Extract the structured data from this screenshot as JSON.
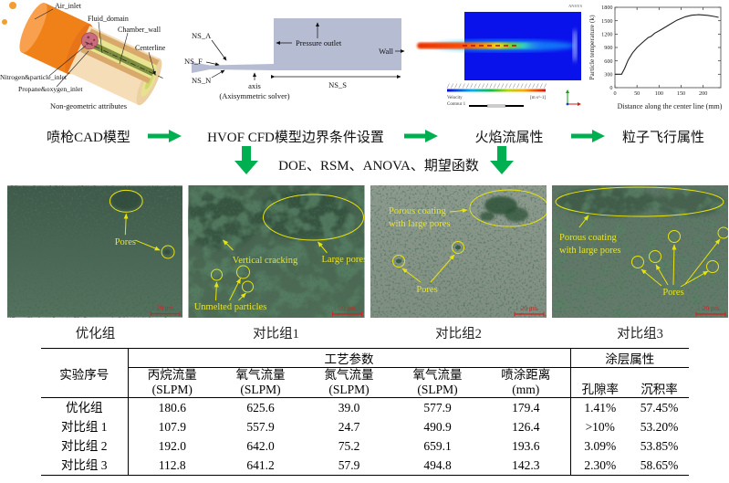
{
  "colors": {
    "arrow_green": "#00b050",
    "annotation_yellow": "#e8e40c",
    "scalebar_red": "#cf1f1f",
    "cfd_domain_fill": "#b6bcd2",
    "flame_field_blue": "#0a12ec"
  },
  "cad_panel": {
    "air_inlet": "Air_inlet",
    "fluid_domain": "Fluid_domain",
    "chamber_wall": "Chamber_wall",
    "centerline": "Centerline",
    "nitrogen_particle_inlet": "Nitrogen&particle_inlet",
    "propane_oxygen_inlet": "Propane&oxygen_inlet",
    "caption": "Non-geometric attributes"
  },
  "cfd_panel": {
    "ns_a": "NS_A",
    "ns_f": "NS_F",
    "ns_n": "NS_N",
    "axis_label": "axis",
    "solver_note": "(Axisymmetric solver)",
    "pressure_outlet": "Pressure outlet",
    "wall": "Wall",
    "ns_s": "NS_S"
  },
  "flame_panel": {
    "brand": "ANSYS",
    "legend_title": "Velocity",
    "legend_subtitle": "Contour 1",
    "legend_unit": "[m s^-1]"
  },
  "chart_data": {
    "type": "line",
    "title": "",
    "xlabel": "Distance along the center line (mm)",
    "ylabel": "Particle temperature (k)",
    "x": [
      0,
      15,
      22,
      30,
      40,
      50,
      60,
      75,
      82,
      90,
      105,
      120,
      140,
      160,
      175,
      190,
      210,
      225,
      235
    ],
    "y": [
      300,
      300,
      430,
      620,
      780,
      900,
      990,
      1120,
      1150,
      1220,
      1300,
      1390,
      1510,
      1590,
      1625,
      1635,
      1620,
      1595,
      1575
    ],
    "xticks": [
      0,
      50,
      100,
      150,
      200
    ],
    "yticks": [
      0,
      300,
      600,
      900,
      1200,
      1500,
      1800
    ],
    "xlim": [
      0,
      240
    ],
    "ylim": [
      0,
      1800
    ],
    "line_color": "#222222",
    "grid": false,
    "legend": []
  },
  "flow": {
    "stage1": "喷枪CAD模型",
    "stage2": "HVOF CFD模型边界条件设置",
    "stage3": "火焰流属性",
    "stage4": "粒子飞行属性",
    "analysis": "DOE、RSM、ANOVA、期望函数"
  },
  "micrographs": {
    "scale_label": "20 μm",
    "items": [
      {
        "caption": "优化组",
        "pores": "Pores"
      },
      {
        "caption": "对比组1",
        "vertical_cracking": "Vertical cracking",
        "large_pores": "Large pores",
        "unmelted_particles": "Unmelted particles"
      },
      {
        "caption": "对比组2",
        "porous_line1": "Porous coating",
        "porous_line2": "with large pores",
        "pores": "Pores"
      },
      {
        "caption": "对比组3",
        "porous_line1": "Porous coating",
        "porous_line2": "with large pores",
        "pores": "Pores"
      }
    ]
  },
  "table": {
    "row_header": "实验序号",
    "group1": "工艺参数",
    "group2": "涂层属性",
    "columns": [
      {
        "name": "丙烷流量",
        "unit": "(SLPM)"
      },
      {
        "name": "氧气流量",
        "unit": "(SLPM)"
      },
      {
        "name": "氮气流量",
        "unit": "(SLPM)"
      },
      {
        "name": "氧气流量",
        "unit": "(SLPM)"
      },
      {
        "name": "喷涂距离",
        "unit": "(mm)"
      },
      {
        "name": "孔隙率",
        "unit": ""
      },
      {
        "name": "沉积率",
        "unit": ""
      }
    ],
    "rows": [
      {
        "label": "优化组",
        "values": [
          "180.6",
          "625.6",
          "39.0",
          "577.9",
          "179.4",
          "1.41%",
          "57.45%"
        ]
      },
      {
        "label": "对比组 1",
        "values": [
          "107.9",
          "557.9",
          "24.7",
          "490.9",
          "126.4",
          ">10%",
          "53.20%"
        ]
      },
      {
        "label": "对比组 2",
        "values": [
          "192.0",
          "642.0",
          "75.2",
          "659.1",
          "193.6",
          "3.09%",
          "53.85%"
        ]
      },
      {
        "label": "对比组 3",
        "values": [
          "112.8",
          "641.2",
          "57.9",
          "494.8",
          "142.3",
          "2.30%",
          "58.65%"
        ]
      }
    ]
  }
}
